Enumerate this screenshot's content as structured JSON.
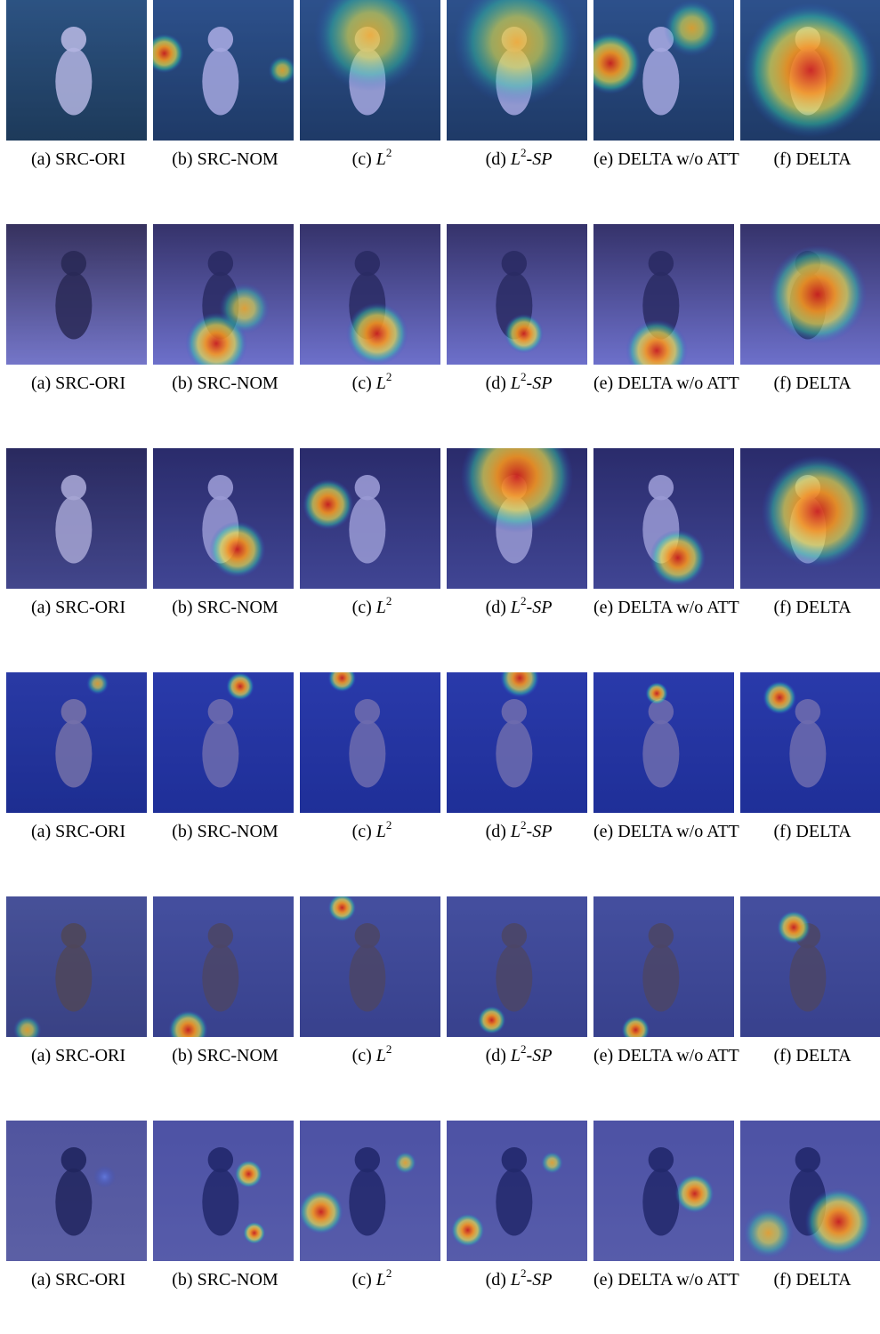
{
  "captions": [
    {
      "label": "(a) SRC-ORI"
    },
    {
      "label": "(b) SRC-NOM"
    },
    {
      "label": "(c) ",
      "math": "L",
      "sup": "2",
      "rest": ""
    },
    {
      "label": "(d) ",
      "math": "L",
      "sup": "2",
      "rest": "-SP"
    },
    {
      "label": "(e) DELTA w/o ATT"
    },
    {
      "label": "(f) DELTA"
    }
  ],
  "rows": [
    {
      "scene": "chihuahua-grass",
      "bg_top": "#2e5a6e",
      "bg_bot": "#1a3a3a",
      "subject": "#d9d6e6",
      "heat": [
        [],
        [
          {
            "cx": 8,
            "cy": 38,
            "r": 14,
            "level": "high"
          },
          {
            "cx": 92,
            "cy": 50,
            "r": 10,
            "level": "mid"
          }
        ],
        [
          {
            "cx": 50,
            "cy": 25,
            "r": 40,
            "level": "mid"
          }
        ],
        [
          {
            "cx": 50,
            "cy": 30,
            "r": 45,
            "level": "mid"
          }
        ],
        [
          {
            "cx": 12,
            "cy": 45,
            "r": 22,
            "level": "high"
          },
          {
            "cx": 70,
            "cy": 20,
            "r": 20,
            "level": "mid"
          }
        ],
        [
          {
            "cx": 50,
            "cy": 50,
            "r": 48,
            "level": "high"
          }
        ]
      ]
    },
    {
      "scene": "dog-can",
      "bg_top": "#3a2f3f",
      "bg_bot": "#8a87c8",
      "subject": "#2a2535",
      "heat": [
        [],
        [
          {
            "cx": 45,
            "cy": 85,
            "r": 22,
            "level": "high"
          },
          {
            "cx": 65,
            "cy": 60,
            "r": 18,
            "level": "mid"
          }
        ],
        [
          {
            "cx": 55,
            "cy": 78,
            "r": 22,
            "level": "high"
          }
        ],
        [
          {
            "cx": 55,
            "cy": 78,
            "r": 14,
            "level": "high"
          }
        ],
        [
          {
            "cx": 45,
            "cy": 90,
            "r": 22,
            "level": "high"
          }
        ],
        [
          {
            "cx": 55,
            "cy": 50,
            "r": 35,
            "level": "high"
          }
        ]
      ]
    },
    {
      "scene": "dog-sink",
      "bg_top": "#2a2540",
      "bg_bot": "#4a4a7a",
      "subject": "#c9c3d6",
      "heat": [
        [],
        [
          {
            "cx": 60,
            "cy": 72,
            "r": 20,
            "level": "high"
          }
        ],
        [
          {
            "cx": 20,
            "cy": 40,
            "r": 18,
            "level": "high"
          }
        ],
        [
          {
            "cx": 50,
            "cy": 20,
            "r": 40,
            "level": "high"
          }
        ],
        [
          {
            "cx": 60,
            "cy": 78,
            "r": 20,
            "level": "high"
          }
        ],
        [
          {
            "cx": 55,
            "cy": 45,
            "r": 40,
            "level": "high"
          }
        ]
      ]
    },
    {
      "scene": "albatross-sea",
      "bg_top": "#2a3a9a",
      "bg_bot": "#1a2a80",
      "subject": "#8a80a0",
      "heat": [
        [
          {
            "cx": 65,
            "cy": 8,
            "r": 8,
            "level": "mid"
          }
        ],
        [
          {
            "cx": 62,
            "cy": 10,
            "r": 10,
            "level": "high"
          }
        ],
        [
          {
            "cx": 30,
            "cy": 4,
            "r": 10,
            "level": "high"
          }
        ],
        [
          {
            "cx": 52,
            "cy": 4,
            "r": 14,
            "level": "high"
          }
        ],
        [
          {
            "cx": 45,
            "cy": 15,
            "r": 8,
            "level": "high"
          }
        ],
        [
          {
            "cx": 28,
            "cy": 18,
            "r": 12,
            "level": "high"
          }
        ]
      ]
    },
    {
      "scene": "bird-branch",
      "bg_top": "#50588a",
      "bg_bot": "#3e4470",
      "subject": "#5a4a3a",
      "heat": [
        [
          {
            "cx": 15,
            "cy": 95,
            "r": 10,
            "level": "mid"
          }
        ],
        [
          {
            "cx": 25,
            "cy": 95,
            "r": 14,
            "level": "high"
          }
        ],
        [
          {
            "cx": 30,
            "cy": 8,
            "r": 10,
            "level": "high"
          }
        ],
        [
          {
            "cx": 32,
            "cy": 88,
            "r": 10,
            "level": "high"
          }
        ],
        [
          {
            "cx": 30,
            "cy": 95,
            "r": 10,
            "level": "high"
          }
        ],
        [
          {
            "cx": 38,
            "cy": 22,
            "r": 12,
            "level": "high"
          }
        ]
      ]
    },
    {
      "scene": "blackbird-ground",
      "bg_top": "#5c5c92",
      "bg_bot": "#6a6a9a",
      "subject": "#1e2040",
      "heat": [
        [
          {
            "cx": 70,
            "cy": 40,
            "r": 8,
            "level": "low"
          }
        ],
        [
          {
            "cx": 68,
            "cy": 38,
            "r": 10,
            "level": "high"
          },
          {
            "cx": 72,
            "cy": 80,
            "r": 8,
            "level": "high"
          }
        ],
        [
          {
            "cx": 15,
            "cy": 65,
            "r": 16,
            "level": "high"
          },
          {
            "cx": 75,
            "cy": 30,
            "r": 8,
            "level": "mid"
          }
        ],
        [
          {
            "cx": 15,
            "cy": 78,
            "r": 12,
            "level": "high"
          },
          {
            "cx": 75,
            "cy": 30,
            "r": 8,
            "level": "mid"
          }
        ],
        [
          {
            "cx": 72,
            "cy": 52,
            "r": 14,
            "level": "high"
          }
        ],
        [
          {
            "cx": 70,
            "cy": 72,
            "r": 24,
            "level": "high"
          },
          {
            "cx": 20,
            "cy": 80,
            "r": 18,
            "level": "mid"
          }
        ]
      ]
    }
  ]
}
